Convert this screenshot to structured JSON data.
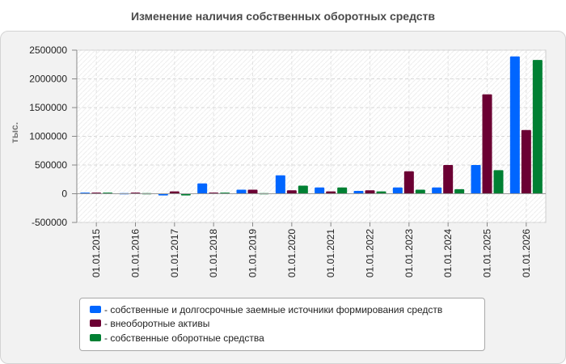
{
  "chart_data": {
    "type": "bar",
    "title": "Изменение наличия собственных оборотных средств",
    "xlabel": "",
    "ylabel": "тыс.",
    "ylim": [
      -500000,
      2500000
    ],
    "yticks": [
      2500000,
      2000000,
      1500000,
      1000000,
      500000,
      0,
      -500000
    ],
    "grid": true,
    "legend_position": "bottom",
    "categories": [
      "01.01.2015",
      "01.01.2016",
      "01.01.2017",
      "01.01.2018",
      "01.01.2019",
      "01.01.2020",
      "01.01.2021",
      "01.01.2022",
      "01.01.2023",
      "01.01.2024",
      "01.01.2025",
      "01.01.2026"
    ],
    "series": [
      {
        "name": "собственные и долгосрочные заемные источники формирования средств",
        "color": "#0066ff",
        "values": [
          20000,
          10000,
          -30000,
          180000,
          70000,
          320000,
          110000,
          50000,
          110000,
          110000,
          500000,
          2390000
        ]
      },
      {
        "name": "внеоборотные активы",
        "color": "#6b0033",
        "values": [
          20000,
          20000,
          40000,
          20000,
          70000,
          60000,
          40000,
          60000,
          390000,
          500000,
          1730000,
          1110000
        ]
      },
      {
        "name": "собственные оборотные средства",
        "color": "#008033",
        "values": [
          20000,
          10000,
          -30000,
          20000,
          10000,
          140000,
          110000,
          40000,
          70000,
          80000,
          410000,
          2330000
        ]
      }
    ]
  }
}
